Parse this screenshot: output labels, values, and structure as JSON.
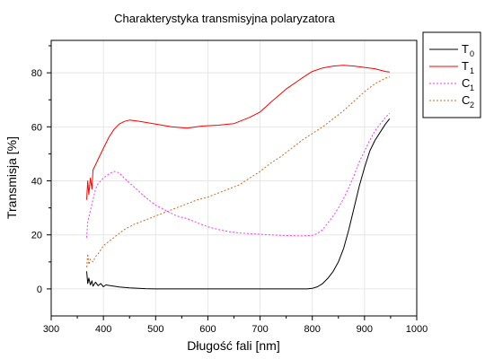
{
  "chart_data": {
    "type": "line",
    "title": "Charakterystyka transmisyjna polaryzatora",
    "xlabel": "Długość fali [nm]",
    "ylabel": "Transmisja [%]",
    "xlim": [
      300,
      1000
    ],
    "ylim": [
      -10,
      92
    ],
    "x_ticks": [
      "300",
      "400",
      "500",
      "600",
      "700",
      "800",
      "900",
      "1000"
    ],
    "y_ticks": [
      "0",
      "20",
      "40",
      "60",
      "80"
    ],
    "grid": true,
    "legend_position": "outside-right",
    "series": [
      {
        "name": "T0",
        "label_main": "T",
        "label_sub": "0",
        "color": "#000000",
        "dash": "solid",
        "points": [
          [
            368,
            6.5
          ],
          [
            370,
            2
          ],
          [
            372,
            4
          ],
          [
            375,
            1.5
          ],
          [
            378,
            3
          ],
          [
            380,
            1
          ],
          [
            385,
            2.5
          ],
          [
            390,
            1.2
          ],
          [
            395,
            2
          ],
          [
            400,
            0.8
          ],
          [
            405,
            1.5
          ],
          [
            410,
            1.3
          ],
          [
            420,
            1
          ],
          [
            430,
            0.7
          ],
          [
            450,
            0.4
          ],
          [
            480,
            0.1
          ],
          [
            500,
            0
          ],
          [
            600,
            0
          ],
          [
            700,
            0
          ],
          [
            790,
            0
          ],
          [
            800,
            0.2
          ],
          [
            810,
            0.8
          ],
          [
            820,
            2
          ],
          [
            830,
            4
          ],
          [
            840,
            6.5
          ],
          [
            850,
            10
          ],
          [
            860,
            15
          ],
          [
            870,
            22
          ],
          [
            880,
            30
          ],
          [
            890,
            38
          ],
          [
            900,
            45
          ],
          [
            910,
            51
          ],
          [
            920,
            55
          ],
          [
            930,
            58
          ],
          [
            940,
            61
          ],
          [
            948,
            63
          ]
        ]
      },
      {
        "name": "T1",
        "label_main": "T",
        "label_sub": "1",
        "color": "#ff0000",
        "dash": "solid",
        "points": [
          [
            368,
            33
          ],
          [
            370,
            40
          ],
          [
            372,
            35
          ],
          [
            375,
            41
          ],
          [
            378,
            37
          ],
          [
            380,
            44
          ],
          [
            385,
            46
          ],
          [
            390,
            48
          ],
          [
            395,
            50
          ],
          [
            400,
            52
          ],
          [
            410,
            56
          ],
          [
            420,
            59
          ],
          [
            430,
            61
          ],
          [
            440,
            62
          ],
          [
            450,
            62.5
          ],
          [
            470,
            62
          ],
          [
            500,
            61
          ],
          [
            530,
            60
          ],
          [
            560,
            59.5
          ],
          [
            590,
            60.3
          ],
          [
            620,
            60.6
          ],
          [
            650,
            61.2
          ],
          [
            680,
            63.5
          ],
          [
            700,
            65.5
          ],
          [
            720,
            69
          ],
          [
            750,
            74
          ],
          [
            780,
            78
          ],
          [
            800,
            80.5
          ],
          [
            820,
            81.8
          ],
          [
            840,
            82.5
          ],
          [
            860,
            82.8
          ],
          [
            880,
            82.5
          ],
          [
            900,
            82
          ],
          [
            920,
            81.5
          ],
          [
            940,
            80.5
          ],
          [
            948,
            80.3
          ]
        ]
      },
      {
        "name": "C1",
        "label_main": "C",
        "label_sub": "1",
        "color": "#ff33ff",
        "dash": "2,2",
        "points": [
          [
            368,
            19
          ],
          [
            370,
            25
          ],
          [
            375,
            29
          ],
          [
            380,
            33
          ],
          [
            385,
            37
          ],
          [
            390,
            39
          ],
          [
            400,
            41
          ],
          [
            410,
            42.5
          ],
          [
            420,
            43.5
          ],
          [
            430,
            43
          ],
          [
            440,
            41
          ],
          [
            460,
            37.5
          ],
          [
            480,
            34
          ],
          [
            500,
            31
          ],
          [
            520,
            29
          ],
          [
            540,
            27
          ],
          [
            560,
            26
          ],
          [
            580,
            24.5
          ],
          [
            600,
            23
          ],
          [
            620,
            22
          ],
          [
            640,
            21.2
          ],
          [
            660,
            20.7
          ],
          [
            700,
            20.2
          ],
          [
            740,
            19.8
          ],
          [
            780,
            19.6
          ],
          [
            800,
            19.8
          ],
          [
            810,
            20.5
          ],
          [
            820,
            22
          ],
          [
            830,
            24.5
          ],
          [
            840,
            27
          ],
          [
            850,
            30
          ],
          [
            860,
            33.5
          ],
          [
            870,
            37.5
          ],
          [
            880,
            42
          ],
          [
            890,
            47
          ],
          [
            900,
            51
          ],
          [
            910,
            55
          ],
          [
            920,
            58.5
          ],
          [
            930,
            61
          ],
          [
            940,
            63.5
          ],
          [
            948,
            65
          ]
        ]
      },
      {
        "name": "C2",
        "label_main": "C",
        "label_sub": "2",
        "color": "#d2691e",
        "dash": "2,2",
        "points": [
          [
            368,
            8
          ],
          [
            370,
            13
          ],
          [
            372,
            9
          ],
          [
            375,
            11
          ],
          [
            380,
            10
          ],
          [
            385,
            12
          ],
          [
            390,
            13
          ],
          [
            400,
            16
          ],
          [
            420,
            19
          ],
          [
            440,
            22
          ],
          [
            460,
            24
          ],
          [
            480,
            25.5
          ],
          [
            500,
            27
          ],
          [
            520,
            28.5
          ],
          [
            540,
            30
          ],
          [
            560,
            31.5
          ],
          [
            580,
            33
          ],
          [
            600,
            34
          ],
          [
            620,
            35.5
          ],
          [
            640,
            37
          ],
          [
            660,
            38.5
          ],
          [
            680,
            41
          ],
          [
            700,
            43.5
          ],
          [
            720,
            46.5
          ],
          [
            740,
            49
          ],
          [
            760,
            52
          ],
          [
            780,
            55
          ],
          [
            800,
            57.5
          ],
          [
            820,
            60
          ],
          [
            840,
            63
          ],
          [
            860,
            66
          ],
          [
            880,
            69.5
          ],
          [
            900,
            73
          ],
          [
            920,
            76
          ],
          [
            940,
            78
          ],
          [
            948,
            78.5
          ]
        ]
      }
    ]
  }
}
